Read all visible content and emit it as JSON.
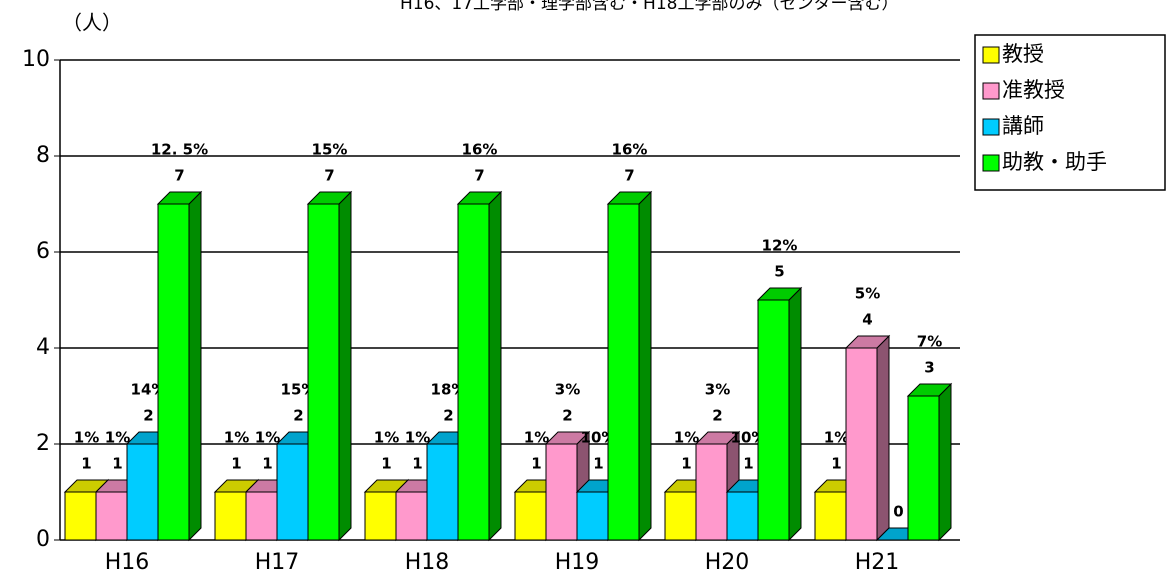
{
  "chart_data": {
    "type": "bar3d",
    "title": "H16、17工学部・理学部含む・H18工学部のみ（センター含む）",
    "ylabel": "（人）",
    "categories": [
      "H16",
      "H17",
      "H18",
      "H19",
      "H20",
      "H21"
    ],
    "series": [
      {
        "name": "教授",
        "color": "#ffff00",
        "values": [
          1,
          1,
          1,
          1,
          1,
          1
        ],
        "percent_labels": [
          "1%",
          "1%",
          "1%",
          "1%",
          "1%",
          "1%"
        ]
      },
      {
        "name": "准教授",
        "color": "#ff99cc",
        "values": [
          1,
          1,
          1,
          2,
          2,
          4
        ],
        "percent_labels": [
          "1%",
          "1%",
          "1%",
          "3%",
          "3%",
          "5%"
        ]
      },
      {
        "name": "講師",
        "color": "#00ccff",
        "values": [
          2,
          2,
          2,
          1,
          1,
          0
        ],
        "percent_labels": [
          "14%",
          "15%",
          "18%",
          "10%",
          "10%",
          null
        ]
      },
      {
        "name": "助教・助手",
        "color": "#00ff00",
        "values": [
          7,
          7,
          7,
          7,
          5,
          3
        ],
        "percent_labels": [
          "12. 5%",
          "15%",
          "16%",
          "16%",
          "12%",
          "7%"
        ]
      }
    ],
    "ylim": [
      0,
      10
    ],
    "yticks": [
      0,
      2,
      4,
      6,
      8,
      10
    ],
    "grid": true,
    "legend": "right"
  }
}
